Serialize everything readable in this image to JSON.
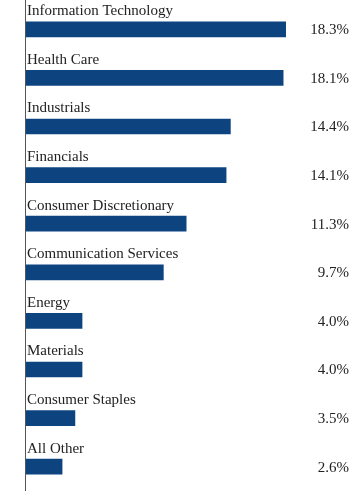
{
  "chart_data": {
    "type": "bar",
    "orientation": "horizontal",
    "categories": [
      "Information Technology",
      "Health Care",
      "Industrials",
      "Financials",
      "Consumer Discretionary",
      "Communication Services",
      "Energy",
      "Materials",
      "Consumer Staples",
      "All Other"
    ],
    "values": [
      18.3,
      18.1,
      14.4,
      14.1,
      11.3,
      9.7,
      4.0,
      4.0,
      3.5,
      2.6
    ],
    "value_labels": [
      "18.3%",
      "18.1%",
      "14.4%",
      "14.1%",
      "11.3%",
      "9.7%",
      "4.0%",
      "4.0%",
      "3.5%",
      "2.6%"
    ],
    "color": "#0d4480",
    "xlim": [
      0,
      18.3
    ],
    "grid": false,
    "tick_labels": false,
    "data_labels": true,
    "legend": false
  }
}
